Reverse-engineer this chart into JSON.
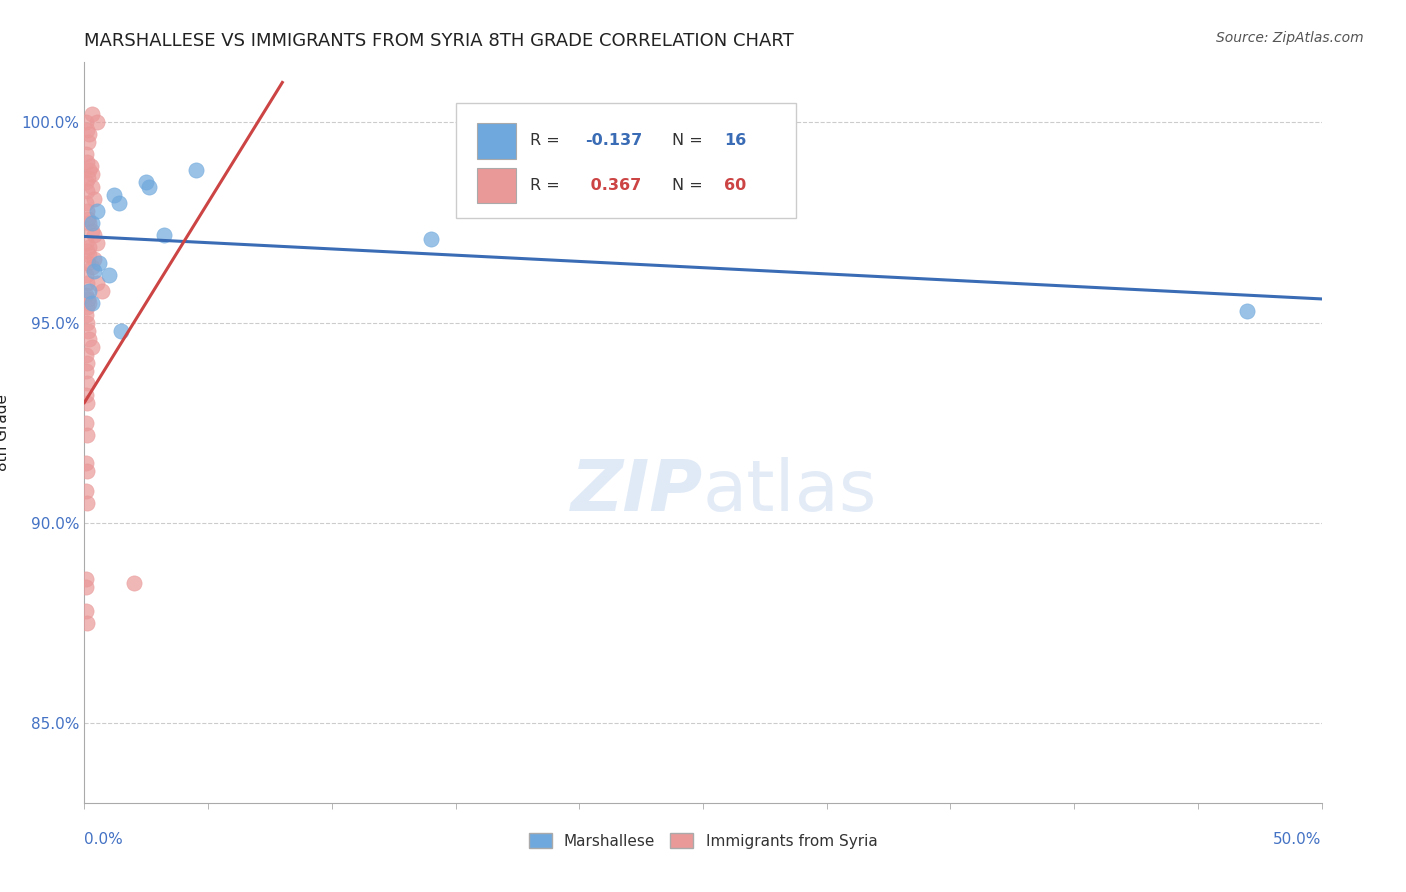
{
  "title": "MARSHALLESE VS IMMIGRANTS FROM SYRIA 8TH GRADE CORRELATION CHART",
  "source": "Source: ZipAtlas.com",
  "ylabel": "8th Grade",
  "xlim": [
    0.0,
    50.0
  ],
  "ylim": [
    83.0,
    101.5
  ],
  "yticks": [
    85.0,
    90.0,
    95.0,
    100.0
  ],
  "ytick_labels": [
    "85.0%",
    "90.0%",
    "95.0%",
    "100.0%"
  ],
  "R_blue": -0.137,
  "N_blue": 16,
  "R_pink": 0.367,
  "N_pink": 60,
  "blue_color": "#6fa8dc",
  "pink_color": "#ea9999",
  "blue_line_color": "#3a6cb5",
  "pink_line_color": "#cc4444",
  "blue_scatter": [
    [
      0.3,
      97.5
    ],
    [
      0.5,
      97.8
    ],
    [
      1.2,
      98.2
    ],
    [
      1.4,
      98.0
    ],
    [
      2.5,
      98.5
    ],
    [
      2.6,
      98.4
    ],
    [
      3.2,
      97.2
    ],
    [
      4.5,
      98.8
    ],
    [
      0.4,
      96.3
    ],
    [
      0.6,
      96.5
    ],
    [
      1.0,
      96.2
    ],
    [
      14.0,
      97.1
    ],
    [
      47.0,
      95.3
    ],
    [
      0.2,
      95.8
    ],
    [
      0.3,
      95.5
    ],
    [
      1.5,
      94.8
    ]
  ],
  "pink_scatter": [
    [
      0.05,
      100.0
    ],
    [
      0.1,
      99.8
    ],
    [
      0.15,
      99.5
    ],
    [
      0.2,
      99.7
    ],
    [
      0.05,
      99.2
    ],
    [
      0.1,
      99.0
    ],
    [
      0.2,
      98.8
    ],
    [
      0.3,
      98.7
    ],
    [
      0.05,
      98.5
    ],
    [
      0.1,
      98.3
    ],
    [
      0.15,
      98.6
    ],
    [
      0.25,
      98.9
    ],
    [
      0.3,
      100.2
    ],
    [
      0.5,
      100.0
    ],
    [
      0.05,
      98.0
    ],
    [
      0.1,
      97.8
    ],
    [
      0.15,
      97.6
    ],
    [
      0.2,
      97.5
    ],
    [
      0.3,
      97.3
    ],
    [
      0.5,
      97.0
    ],
    [
      0.4,
      97.2
    ],
    [
      0.05,
      97.0
    ],
    [
      0.1,
      96.8
    ],
    [
      0.15,
      96.5
    ],
    [
      0.2,
      96.7
    ],
    [
      0.3,
      96.4
    ],
    [
      0.5,
      96.0
    ],
    [
      0.7,
      95.8
    ],
    [
      0.05,
      96.2
    ],
    [
      0.1,
      96.0
    ],
    [
      0.2,
      95.5
    ],
    [
      0.05,
      95.7
    ],
    [
      0.1,
      95.4
    ],
    [
      0.15,
      95.6
    ],
    [
      0.05,
      95.2
    ],
    [
      0.1,
      95.0
    ],
    [
      0.15,
      94.8
    ],
    [
      0.2,
      94.6
    ],
    [
      0.3,
      94.4
    ],
    [
      0.05,
      94.2
    ],
    [
      0.1,
      94.0
    ],
    [
      0.05,
      93.8
    ],
    [
      0.1,
      93.5
    ],
    [
      0.05,
      93.2
    ],
    [
      0.1,
      93.0
    ],
    [
      0.05,
      92.5
    ],
    [
      0.1,
      92.2
    ],
    [
      0.05,
      91.5
    ],
    [
      0.1,
      91.3
    ],
    [
      0.05,
      90.8
    ],
    [
      0.1,
      90.5
    ],
    [
      0.3,
      98.4
    ],
    [
      0.4,
      98.1
    ],
    [
      0.2,
      96.9
    ],
    [
      0.4,
      96.6
    ],
    [
      0.05,
      88.6
    ],
    [
      0.08,
      88.4
    ],
    [
      0.05,
      87.8
    ],
    [
      0.1,
      87.5
    ],
    [
      2.0,
      88.5
    ]
  ],
  "watermark_zip": "ZIP",
  "watermark_atlas": "atlas",
  "background_color": "#ffffff",
  "grid_color": "#cccccc",
  "axis_color": "#aaaaaa",
  "tick_label_color": "#4472c4"
}
